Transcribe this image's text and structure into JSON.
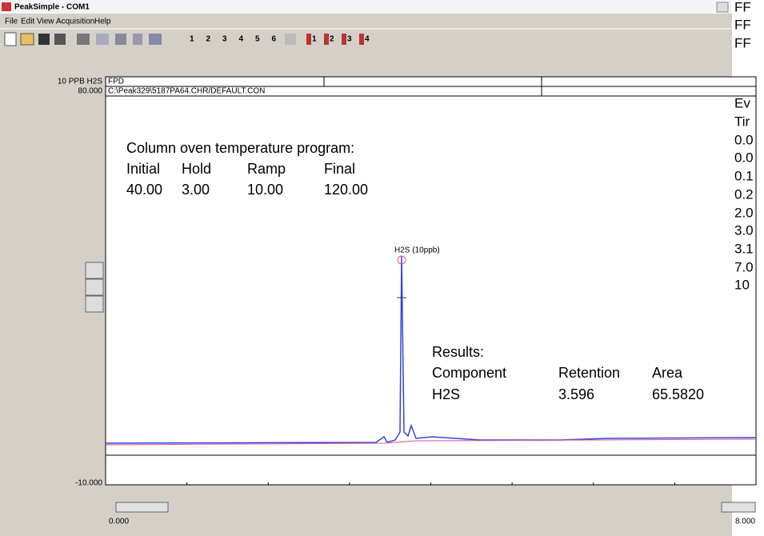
{
  "window": {
    "title": "PeakSimple - COM1"
  },
  "menu": [
    "File",
    "Edit",
    "View",
    "Acquisition",
    "Help"
  ],
  "toolbar": {
    "channels": [
      "1",
      "2",
      "3",
      "4",
      "5",
      "6"
    ],
    "detectors": [
      "1",
      "2",
      "3",
      "4"
    ]
  },
  "plot": {
    "ymax_label": "80.000",
    "ymin_label": "-10.000",
    "xmin_label": "0.000",
    "xmax_label": "8.000",
    "sample": "10 PPB H2S",
    "header": [
      "FPD",
      "C:\\Peak329\\5187PA64.CHR/DEFAULT.CON"
    ],
    "peak_label": "H2S (10ppb)"
  },
  "oven": {
    "title": "Column oven temperature program:",
    "columns": [
      "Initial",
      "Hold",
      "Ramp",
      "Final"
    ],
    "values": [
      "40.00",
      "3.00",
      "10.00",
      "120.00"
    ]
  },
  "results": {
    "title": "Results:",
    "columns": [
      "Component",
      "Retention",
      "Area"
    ],
    "row": [
      "H2S",
      "3.596",
      "65.5820"
    ]
  },
  "side_panel": [
    "FF",
    "FF",
    "FF",
    "Ev",
    "Tir",
    "0.0",
    "0.0",
    "0.1",
    "0.2",
    "2.0",
    "3.0",
    "3.1",
    "7.0",
    "10"
  ]
}
